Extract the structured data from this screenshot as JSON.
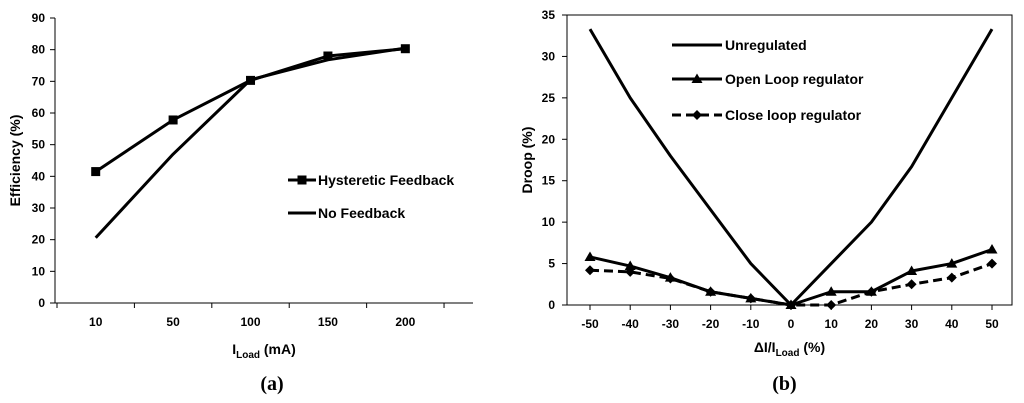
{
  "chart_data": [
    {
      "type": "line",
      "panel_label": "(a)",
      "categories": [
        "10",
        "50",
        "100",
        "150",
        "200"
      ],
      "series": [
        {
          "name": "Hysteretic Feedback",
          "values": [
            41.5,
            57.8,
            70.3,
            78.0,
            80.3
          ],
          "marker": "square",
          "dash": "solid"
        },
        {
          "name": "No Feedback",
          "values": [
            20.6,
            47.0,
            70.5,
            76.8,
            80.5
          ],
          "marker": "none",
          "dash": "solid"
        }
      ],
      "ylabel": "Efficiency (%)",
      "xlabel": {
        "main": "I",
        "sub": "Load",
        "suffix": " (mA)"
      },
      "ylim": [
        0,
        90
      ],
      "yticks": [
        0,
        10,
        20,
        30,
        40,
        50,
        60,
        70,
        80,
        90
      ],
      "legend_position": "center-right",
      "grid": false
    },
    {
      "type": "line",
      "panel_label": "(b)",
      "x": [
        -50,
        -40,
        -30,
        -20,
        -10,
        0,
        10,
        20,
        30,
        40,
        50
      ],
      "xticks": [
        "-50",
        "-40",
        "-30",
        "-20",
        "-10",
        "0",
        "10",
        "20",
        "30",
        "40",
        "50"
      ],
      "series": [
        {
          "name": "Unregulated",
          "x": [
            -50,
            -40,
            -30,
            -20,
            -10,
            0,
            10,
            20,
            30,
            40,
            50
          ],
          "values": [
            33.3,
            25.0,
            18.0,
            11.5,
            5.0,
            0,
            5.0,
            10.0,
            16.7,
            25.0,
            33.3
          ],
          "marker": "none",
          "dash": "solid"
        },
        {
          "name": "Open Loop regulator",
          "x": [
            -50,
            -40,
            -30,
            -20,
            -10,
            0,
            10,
            20,
            30,
            40,
            50
          ],
          "values": [
            5.8,
            4.7,
            3.3,
            1.6,
            0.8,
            0,
            1.6,
            1.6,
            4.1,
            5.0,
            6.7
          ],
          "marker": "triangle",
          "dash": "solid"
        },
        {
          "name": "Close loop regulator",
          "x": [
            -50,
            -40,
            -30,
            -20,
            -10,
            0,
            10,
            20,
            30,
            40,
            50
          ],
          "values": [
            4.2,
            4.0,
            3.2,
            1.6,
            0.8,
            0,
            0,
            1.6,
            2.5,
            3.3,
            5.0
          ],
          "marker": "diamond",
          "dash": "dashed"
        }
      ],
      "ylabel": "Droop (%)",
      "xlabel": {
        "main": "ΔI/I",
        "sub": "Load",
        "suffix": " (%)"
      },
      "ylim": [
        0,
        35
      ],
      "yticks": [
        0,
        5,
        10,
        15,
        20,
        25,
        30,
        35
      ],
      "legend_position": "top-left",
      "grid": false
    }
  ]
}
